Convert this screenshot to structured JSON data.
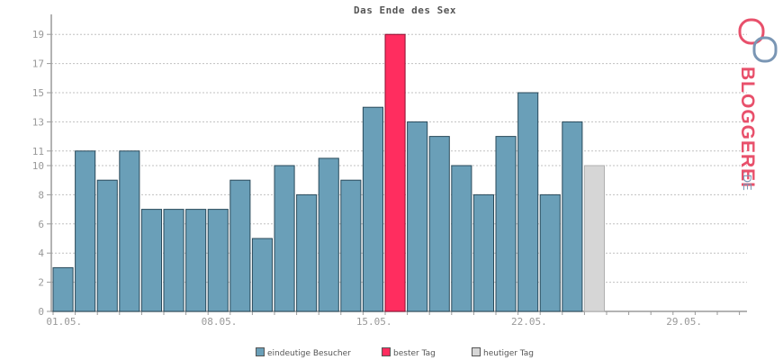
{
  "chart_data": {
    "type": "bar",
    "title": "Das Ende des Sex",
    "ylim": [
      0,
      20
    ],
    "yticks": [
      0,
      2,
      4,
      6,
      8,
      10,
      11,
      13,
      15,
      17,
      19
    ],
    "xticks": [
      "01.05.",
      "08.05.",
      "15.05.",
      "22.05.",
      "29.05."
    ],
    "days": 31,
    "values": [
      3,
      11,
      9,
      11,
      7,
      7,
      7,
      7,
      9,
      5,
      10,
      8,
      10.5,
      9,
      14,
      19,
      13,
      12,
      10,
      8,
      12,
      15,
      8,
      13,
      10
    ],
    "best_day_index": 15,
    "today_index": 24,
    "colors": {
      "visitors": "#6a9fb8",
      "best": "#ff2d5f",
      "today": "#d6d6d6",
      "bar_stroke": "#2a4a5a",
      "grid": "#c0c0c0",
      "axis": "#9a9a9a",
      "text": "#999999"
    },
    "legend": [
      {
        "label": "eindeutige Besucher",
        "color": "#6a9fb8"
      },
      {
        "label": "bester Tag",
        "color": "#ff2d5f"
      },
      {
        "label": "heutiger Tag",
        "color": "#d6d6d6"
      }
    ]
  },
  "brand": {
    "text": "BLOGGEREI",
    "suffix": ".DE",
    "color": "#e8506b",
    "suffix_color": "#7a96b4"
  }
}
